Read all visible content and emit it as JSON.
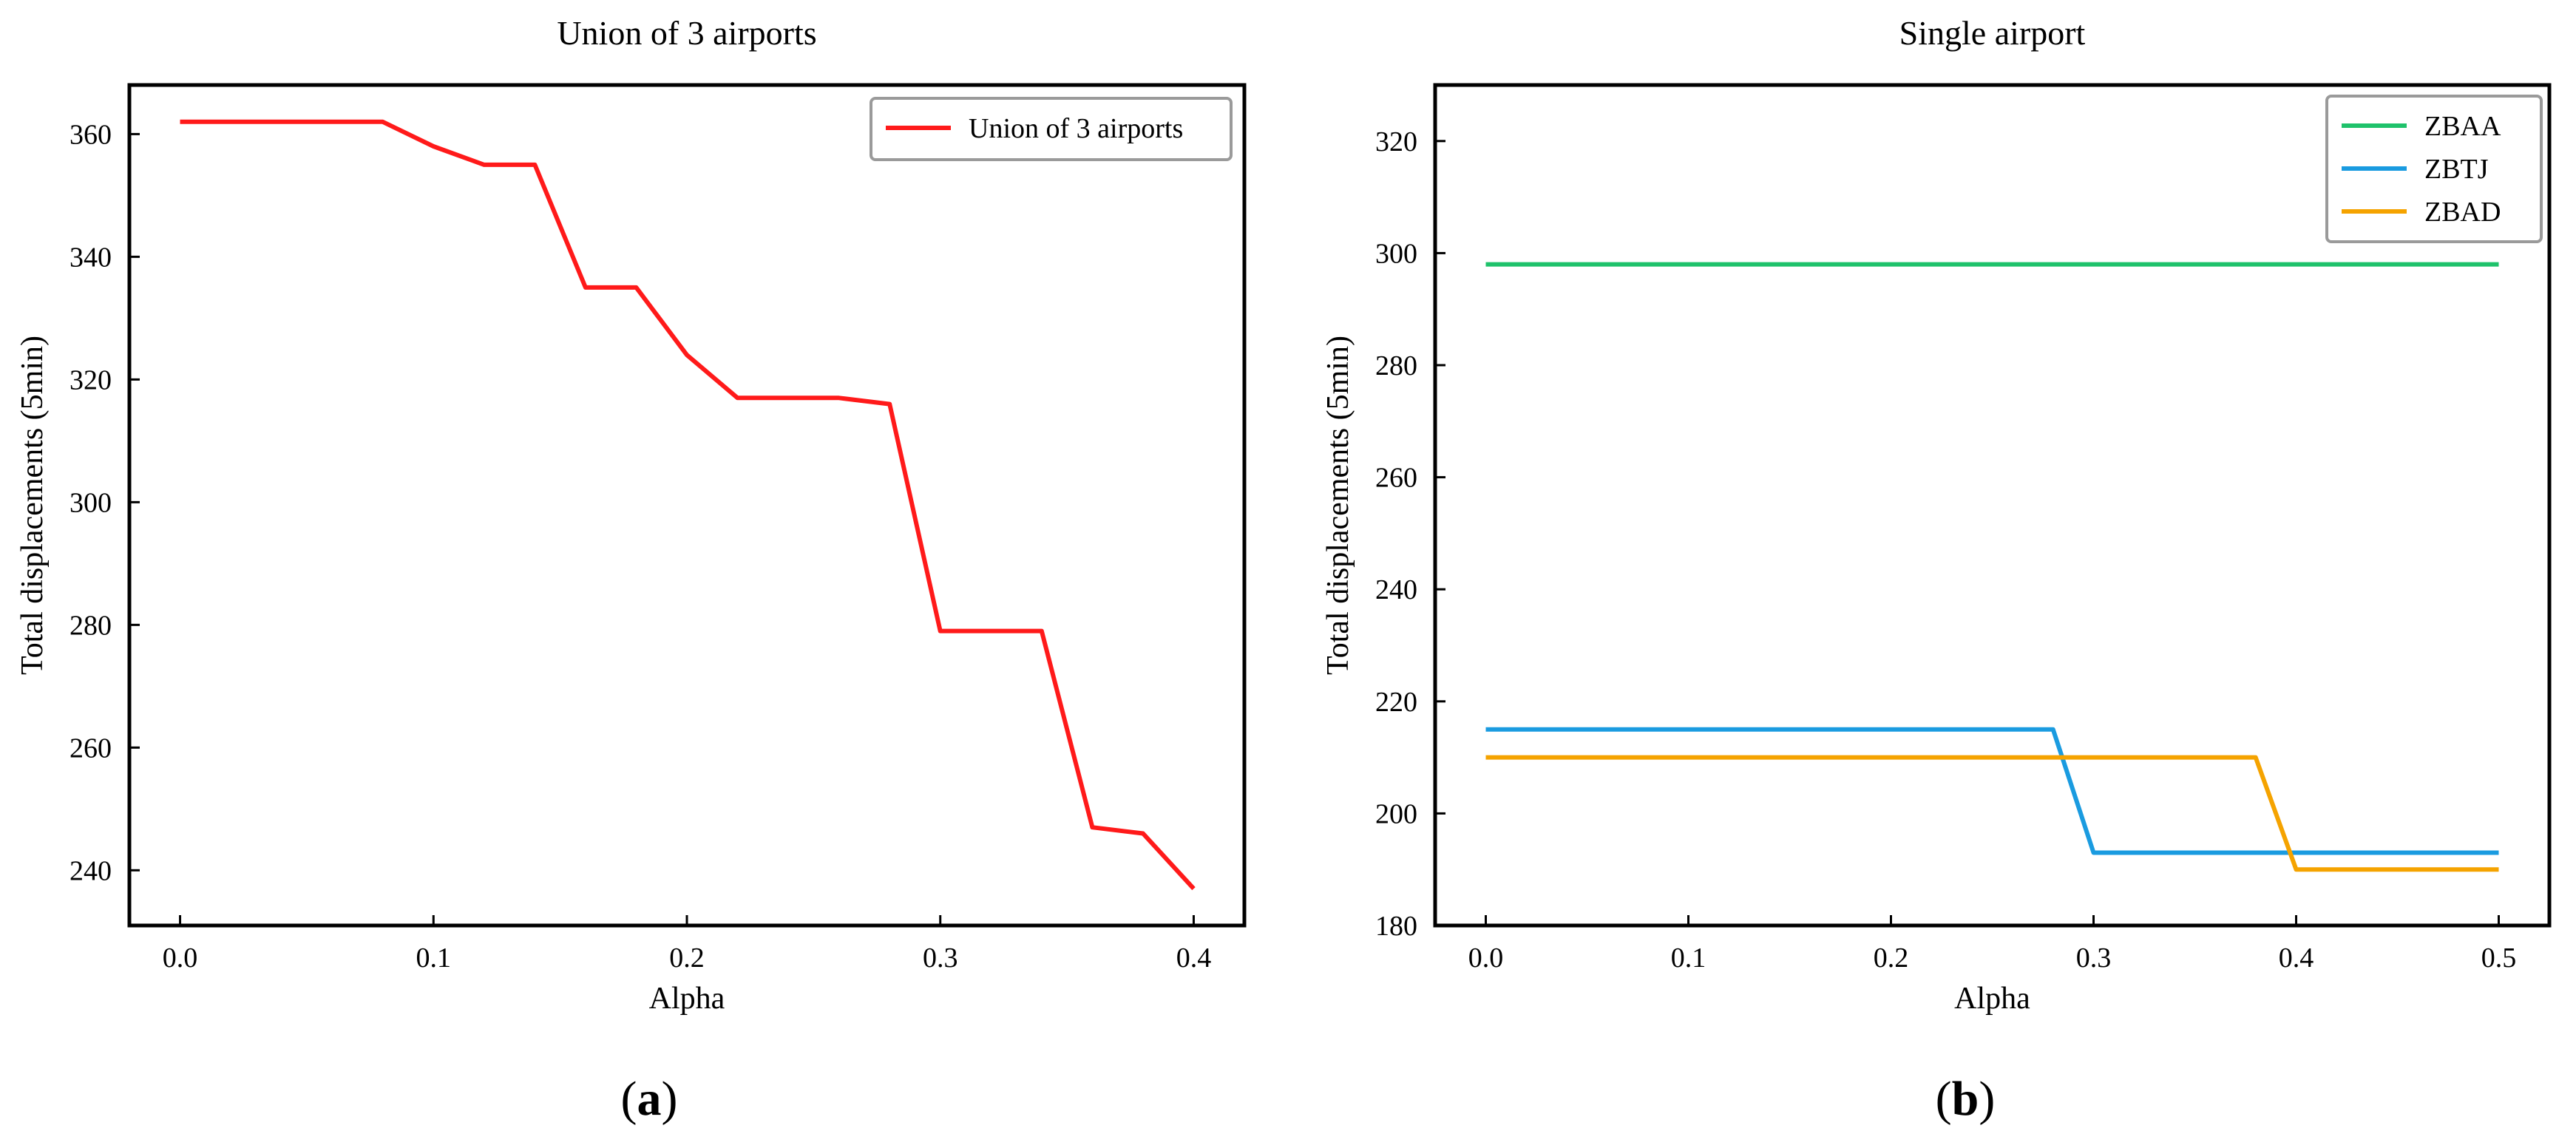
{
  "panels": [
    {
      "caption_letter": "a",
      "chart_data": {
        "type": "line",
        "title": "Union of 3 airports",
        "xlabel": "Alpha",
        "ylabel": "Total displacements (5min)",
        "xlim": [
          -0.02,
          0.42
        ],
        "ylim": [
          231,
          368
        ],
        "xticks": [
          0.0,
          0.1,
          0.2,
          0.3,
          0.4
        ],
        "xtick_labels": [
          "0.0",
          "0.1",
          "0.2",
          "0.3",
          "0.4"
        ],
        "yticks": [
          240,
          260,
          280,
          300,
          320,
          340,
          360
        ],
        "ytick_labels": [
          "240",
          "260",
          "280",
          "300",
          "320",
          "340",
          "360"
        ],
        "grid": false,
        "legend_position": "top-right",
        "series": [
          {
            "name": "Union of 3 airports",
            "color": "#ff1a1a",
            "x": [
              0.0,
              0.02,
              0.04,
              0.06,
              0.08,
              0.1,
              0.12,
              0.14,
              0.16,
              0.18,
              0.2,
              0.22,
              0.24,
              0.26,
              0.28,
              0.3,
              0.32,
              0.34,
              0.36,
              0.38,
              0.4
            ],
            "y": [
              362,
              362,
              362,
              362,
              362,
              358,
              355,
              355,
              335,
              335,
              324,
              317,
              317,
              317,
              316,
              279,
              279,
              279,
              247,
              246,
              237
            ]
          }
        ]
      }
    },
    {
      "caption_letter": "b",
      "chart_data": {
        "type": "line",
        "title": "Single airport",
        "xlabel": "Alpha",
        "ylabel": "Total displacements (5min)",
        "xlim": [
          -0.025,
          0.525
        ],
        "ylim": [
          180,
          330
        ],
        "xticks": [
          0.0,
          0.1,
          0.2,
          0.3,
          0.4,
          0.5
        ],
        "xtick_labels": [
          "0.0",
          "0.1",
          "0.2",
          "0.3",
          "0.4",
          "0.5"
        ],
        "yticks": [
          180,
          200,
          220,
          240,
          260,
          280,
          300,
          320
        ],
        "ytick_labels": [
          "180",
          "200",
          "220",
          "240",
          "260",
          "280",
          "300",
          "320"
        ],
        "grid": false,
        "legend_position": "top-right",
        "series": [
          {
            "name": "ZBAA",
            "color": "#1fc26b",
            "x": [
              0.0,
              0.5
            ],
            "y": [
              298,
              298
            ]
          },
          {
            "name": "ZBTJ",
            "color": "#1a9be0",
            "x": [
              0.0,
              0.28,
              0.3,
              0.5
            ],
            "y": [
              215,
              215,
              193,
              193
            ]
          },
          {
            "name": "ZBAD",
            "color": "#f5a300",
            "x": [
              0.0,
              0.38,
              0.4,
              0.5
            ],
            "y": [
              210,
              210,
              190,
              190
            ]
          }
        ]
      }
    }
  ]
}
